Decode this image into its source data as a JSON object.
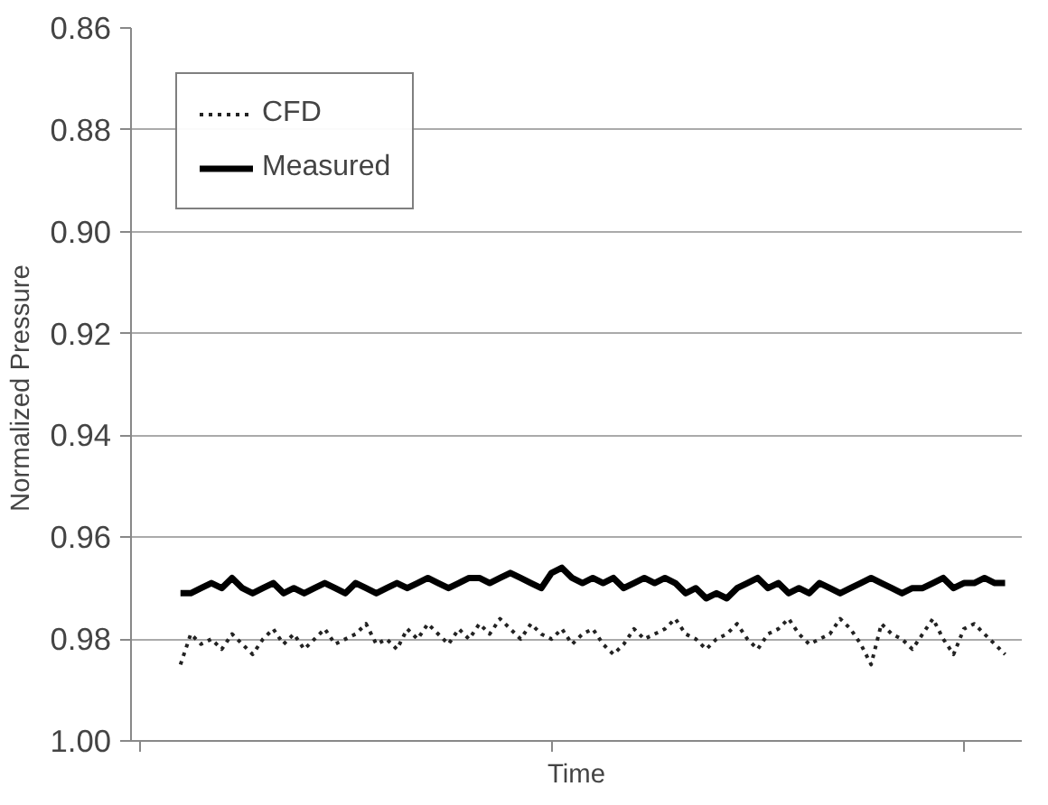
{
  "chart_data": {
    "type": "line",
    "xlabel": "Time",
    "ylabel": "Normalized  Pressure",
    "categories": [
      null,
      null,
      null,
      null,
      null,
      null,
      null,
      null,
      null,
      null,
      null,
      null,
      null,
      null,
      null,
      null,
      null,
      null,
      null,
      null,
      null,
      null,
      null,
      null,
      null,
      null,
      null,
      null,
      null,
      null,
      null,
      null,
      null,
      null,
      null,
      null,
      null,
      null,
      null,
      null,
      null,
      null,
      null,
      null,
      null,
      null,
      null,
      null,
      null,
      null,
      null,
      null,
      null,
      null,
      null,
      null,
      null,
      null,
      null,
      null,
      null,
      null,
      null,
      null,
      null,
      null,
      null,
      null,
      null,
      null,
      null,
      null,
      null,
      null,
      null,
      null,
      null,
      null,
      null,
      null,
      null
    ],
    "series": [
      {
        "name": "CFD",
        "color": "#222222",
        "line_style": "dotted",
        "values": [
          0.985,
          0.979,
          0.981,
          0.98,
          0.982,
          0.979,
          0.981,
          0.983,
          0.98,
          0.978,
          0.981,
          0.979,
          0.982,
          0.98,
          0.978,
          0.981,
          0.98,
          0.979,
          0.977,
          0.981,
          0.98,
          0.982,
          0.978,
          0.98,
          0.977,
          0.979,
          0.981,
          0.978,
          0.98,
          0.977,
          0.979,
          0.976,
          0.978,
          0.98,
          0.977,
          0.979,
          0.98,
          0.978,
          0.981,
          0.979,
          0.978,
          0.981,
          0.983,
          0.981,
          0.978,
          0.98,
          0.979,
          0.978,
          0.976,
          0.979,
          0.98,
          0.982,
          0.98,
          0.979,
          0.977,
          0.98,
          0.982,
          0.979,
          0.978,
          0.976,
          0.979,
          0.981,
          0.98,
          0.979,
          0.976,
          0.978,
          0.981,
          0.985,
          0.977,
          0.979,
          0.98,
          0.982,
          0.979,
          0.976,
          0.98,
          0.983,
          0.978,
          0.977,
          0.979,
          0.981,
          0.983
        ]
      },
      {
        "name": "Measured",
        "color": "#000000",
        "line_style": "solid",
        "values": [
          0.971,
          0.971,
          0.97,
          0.969,
          0.97,
          0.968,
          0.97,
          0.971,
          0.97,
          0.969,
          0.971,
          0.97,
          0.971,
          0.97,
          0.969,
          0.97,
          0.971,
          0.969,
          0.97,
          0.971,
          0.97,
          0.969,
          0.97,
          0.969,
          0.968,
          0.969,
          0.97,
          0.969,
          0.968,
          0.968,
          0.969,
          0.968,
          0.967,
          0.968,
          0.969,
          0.97,
          0.967,
          0.966,
          0.968,
          0.969,
          0.968,
          0.969,
          0.968,
          0.97,
          0.969,
          0.968,
          0.969,
          0.968,
          0.969,
          0.971,
          0.97,
          0.972,
          0.971,
          0.972,
          0.97,
          0.969,
          0.968,
          0.97,
          0.969,
          0.971,
          0.97,
          0.971,
          0.969,
          0.97,
          0.971,
          0.97,
          0.969,
          0.968,
          0.969,
          0.97,
          0.971,
          0.97,
          0.97,
          0.969,
          0.968,
          0.97,
          0.969,
          0.969,
          0.968,
          0.969,
          0.969
        ]
      }
    ],
    "ylim": [
      1.0,
      0.86
    ],
    "yticks": [
      {
        "value": 0.86,
        "label": "0.86"
      },
      {
        "value": 0.88,
        "label": "0.88"
      },
      {
        "value": 0.9,
        "label": "0.90"
      },
      {
        "value": 0.92,
        "label": "0.92"
      },
      {
        "value": 0.94,
        "label": "0.94"
      },
      {
        "value": 0.96,
        "label": "0.96"
      },
      {
        "value": 0.98,
        "label": "0.98"
      },
      {
        "value": 1.0,
        "label": "1.00"
      }
    ],
    "grid": "y",
    "legend": "top left"
  }
}
